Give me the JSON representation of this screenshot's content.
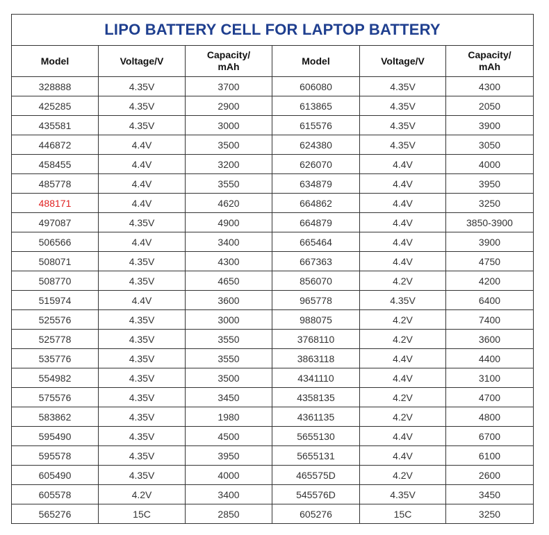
{
  "title": "LIPO BATTERY CELL FOR LAPTOP BATTERY",
  "headers": [
    "Model",
    "Voltage/V",
    "Capacity/\nmAh",
    "Model",
    "Voltage/V",
    "Capacity/\nmAh"
  ],
  "highlight_color": "#e02020",
  "title_color": "#1f3f8f",
  "rows": [
    {
      "cells": [
        "328888",
        "4.35V",
        "3700",
        "606080",
        "4.35V",
        "4300"
      ]
    },
    {
      "cells": [
        "425285",
        "4.35V",
        "2900",
        "613865",
        "4.35V",
        "2050"
      ]
    },
    {
      "cells": [
        "435581",
        "4.35V",
        "3000",
        "615576",
        "4.35V",
        "3900"
      ]
    },
    {
      "cells": [
        "446872",
        "4.4V",
        "3500",
        "624380",
        "4.35V",
        "3050"
      ]
    },
    {
      "cells": [
        "458455",
        "4.4V",
        "3200",
        "626070",
        "4.4V",
        "4000"
      ]
    },
    {
      "cells": [
        "485778",
        "4.4V",
        "3550",
        "634879",
        "4.4V",
        "3950"
      ]
    },
    {
      "cells": [
        "488171",
        "4.4V",
        "4620",
        "664862",
        "4.4V",
        "3250"
      ],
      "highlight_first": true
    },
    {
      "cells": [
        "497087",
        "4.35V",
        "4900",
        "664879",
        "4.4V",
        "3850-3900"
      ]
    },
    {
      "cells": [
        "506566",
        "4.4V",
        "3400",
        "665464",
        "4.4V",
        "3900"
      ]
    },
    {
      "cells": [
        "508071",
        "4.35V",
        "4300",
        "667363",
        "4.4V",
        "4750"
      ]
    },
    {
      "cells": [
        "508770",
        "4.35V",
        "4650",
        "856070",
        "4.2V",
        "4200"
      ]
    },
    {
      "cells": [
        "515974",
        "4.4V",
        "3600",
        "965778",
        "4.35V",
        "6400"
      ]
    },
    {
      "cells": [
        "525576",
        "4.35V",
        "3000",
        "988075",
        "4.2V",
        "7400"
      ]
    },
    {
      "cells": [
        "525778",
        "4.35V",
        "3550",
        "3768110",
        "4.2V",
        "3600"
      ]
    },
    {
      "cells": [
        "535776",
        "4.35V",
        "3550",
        "3863118",
        "4.4V",
        "4400"
      ]
    },
    {
      "cells": [
        "554982",
        "4.35V",
        "3500",
        "4341110",
        "4.4V",
        "3100"
      ]
    },
    {
      "cells": [
        "575576",
        "4.35V",
        "3450",
        "4358135",
        "4.2V",
        "4700"
      ]
    },
    {
      "cells": [
        "583862",
        "4.35V",
        "1980",
        "4361135",
        "4.2V",
        "4800"
      ]
    },
    {
      "cells": [
        "595490",
        "4.35V",
        "4500",
        "5655130",
        "4.4V",
        "6700"
      ]
    },
    {
      "cells": [
        "595578",
        "4.35V",
        "3950",
        "5655131",
        "4.4V",
        "6100"
      ]
    },
    {
      "cells": [
        "605490",
        "4.35V",
        "4000",
        "465575D",
        "4.2V",
        "2600"
      ]
    },
    {
      "cells": [
        "605578",
        "4.2V",
        "3400",
        "545576D",
        "4.35V",
        "3450"
      ]
    },
    {
      "cells": [
        "565276",
        "15C",
        "2850",
        "605276",
        "15C",
        "3250"
      ]
    }
  ]
}
